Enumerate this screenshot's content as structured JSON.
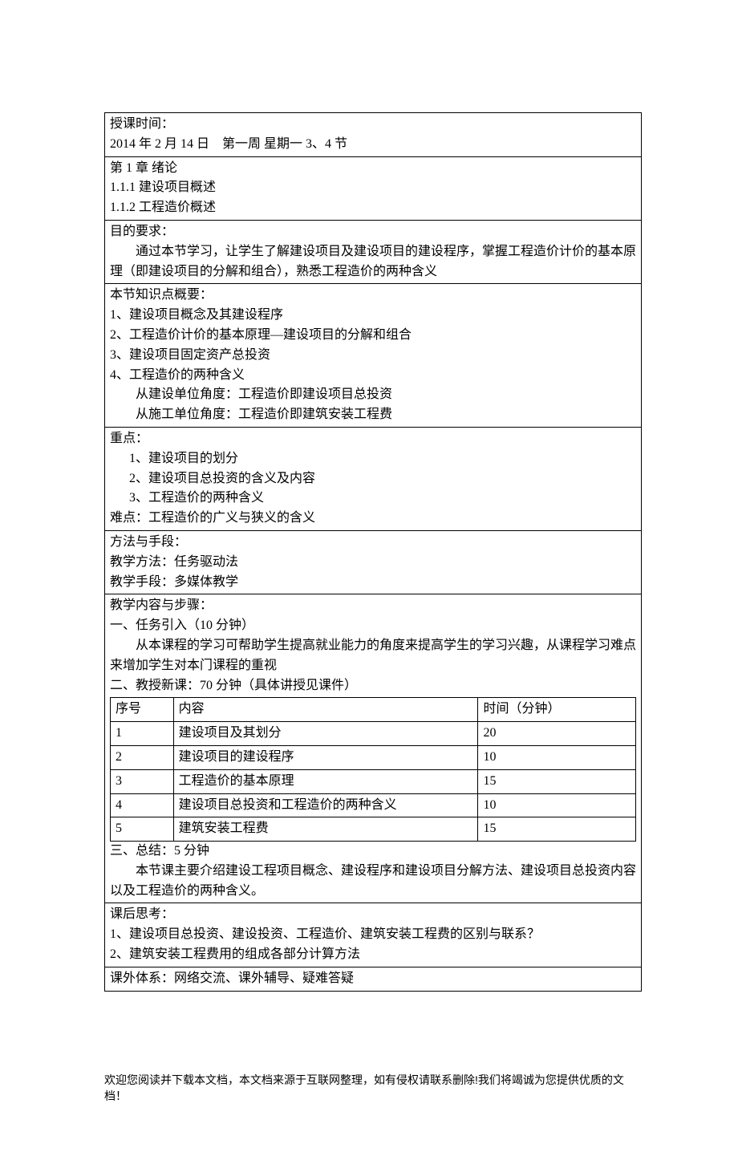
{
  "section1": {
    "label": "授课时间：",
    "value": "2014 年 2 月 14 日　第一周  星期一 3、4 节"
  },
  "section2": {
    "line1": "第 1 章  绪论",
    "line2": "1.1.1  建设项目概述",
    "line3": "1.1.2  工程造价概述"
  },
  "section3": {
    "label": "目的要求：",
    "body": "通过本节学习，让学生了解建设项目及建设项目的建设程序，掌握工程造价计价的基本原理（即建设项目的分解和组合），熟悉工程造价的两种含义"
  },
  "section4": {
    "label": "本节知识点概要：",
    "item1": "1、建设项目概念及其建设程序",
    "item2": "2、工程造价计价的基本原理—建设项目的分解和组合",
    "item3": "3、建设项目固定资产总投资",
    "item4": "4、工程造价的两种含义",
    "item4a": "从建设单位角度：工程造价即建设项目总投资",
    "item4b": "从施工单位角度：工程造价即建筑安装工程费"
  },
  "section5": {
    "label": "重点：",
    "item1": "1、建设项目的划分",
    "item2": "2、建设项目总投资的含义及内容",
    "item3": "3、工程造价的两种含义",
    "difficulty": "难点：工程造价的广义与狭义的含义"
  },
  "section6": {
    "label": "方法与手段：",
    "line1": "教学方法：任务驱动法",
    "line2": "教学手段：多媒体教学"
  },
  "section7": {
    "label": "教学内容与步骤：",
    "part1_title": "一、任务引入（10 分钟）",
    "part1_body": "从本课程的学习可帮助学生提高就业能力的角度来提高学生的学习兴趣，从课程学习难点来增加学生对本门课程的重视",
    "part2_title": "二、教授新课：70 分钟（具体讲授见课件）",
    "table": {
      "headers": {
        "seq": "序号",
        "content": "内容",
        "time": "时间（分钟）"
      },
      "rows": [
        {
          "seq": "1",
          "content": "建设项目及其划分",
          "time": "20"
        },
        {
          "seq": "2",
          "content": "建设项目的建设程序",
          "time": "10"
        },
        {
          "seq": "3",
          "content": "工程造价的基本原理",
          "time": "15"
        },
        {
          "seq": "4",
          "content": "建设项目总投资和工程造价的两种含义",
          "time": "10"
        },
        {
          "seq": "5",
          "content": "建筑安装工程费",
          "time": "15"
        }
      ]
    },
    "part3_title": "三、总结：5 分钟",
    "part3_body": "本节课主要介绍建设工程项目概念、建设程序和建设项目分解方法、建设项目总投资内容以及工程造价的两种含义。"
  },
  "section8": {
    "label": "课后思考：",
    "item1": "1、建设项目总投资、建设投资、工程造价、建筑安装工程费的区别与联系？",
    "item2": "2、建筑安装工程费用的组成各部分计算方法"
  },
  "section9": {
    "text": "课外体系：网络交流、课外辅导、疑难答疑"
  },
  "footer": "欢迎您阅读并下载本文档，本文档来源于互联网整理，如有侵权请联系删除!我们将竭诚为您提供优质的文档！"
}
